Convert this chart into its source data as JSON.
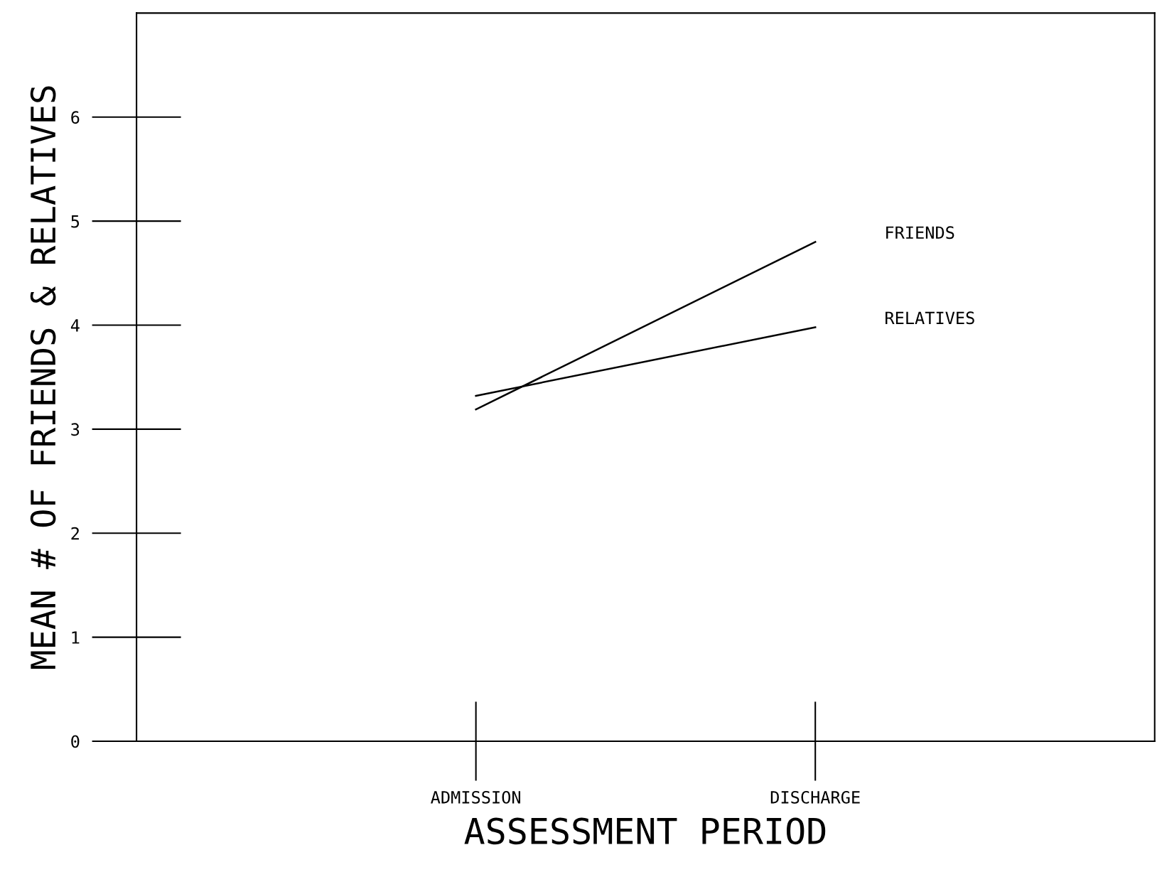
{
  "chart_data": {
    "type": "line",
    "xlabel": "ASSESSMENT PERIOD",
    "ylabel": "MEAN # OF FRIENDS & RELATIVES",
    "categories": [
      "ADMISSION",
      "DISCHARGE"
    ],
    "series": [
      {
        "name": "FRIENDS",
        "color": "#000000",
        "values": [
          3.19,
          4.8
        ]
      },
      {
        "name": "RELATIVES",
        "color": "#000000",
        "values": [
          3.32,
          3.98
        ]
      }
    ],
    "ylim": [
      0,
      7
    ],
    "yticks": [
      0,
      1,
      2,
      3,
      4,
      5,
      6
    ],
    "grid": false,
    "legend": false,
    "marker": "none",
    "line_style": "solid"
  }
}
